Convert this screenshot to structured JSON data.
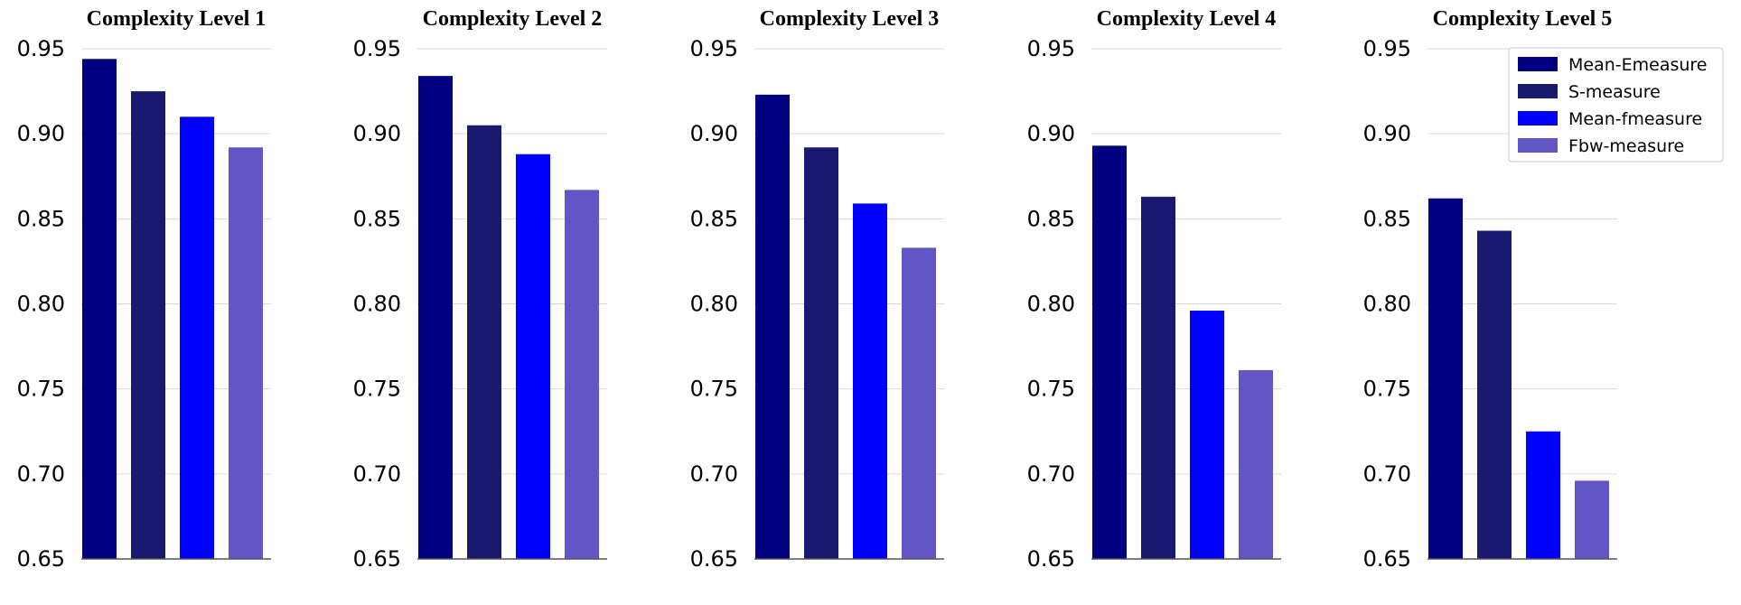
{
  "chart_data": {
    "type": "bar",
    "layout": "five side-by-side panels sharing one legend",
    "series_names": [
      "Mean-Emeasure",
      "S-measure",
      "Mean-fmeasure",
      "Fbw-measure"
    ],
    "colors": [
      "#000080",
      "#191970",
      "#0000FF",
      "#6256C7"
    ],
    "ylim": [
      0.65,
      0.95
    ],
    "yticks": [
      "0.95",
      "0.90",
      "0.85",
      "0.80",
      "0.75",
      "0.70",
      "0.65"
    ],
    "grid": "horizontal",
    "legend_position": "top-right",
    "panels": [
      {
        "title": "Complexity Level 1",
        "values": [
          0.944,
          0.925,
          0.91,
          0.892
        ]
      },
      {
        "title": "Complexity Level 2",
        "values": [
          0.934,
          0.905,
          0.888,
          0.867
        ]
      },
      {
        "title": "Complexity Level 3",
        "values": [
          0.923,
          0.892,
          0.859,
          0.833
        ]
      },
      {
        "title": "Complexity Level 4",
        "values": [
          0.893,
          0.863,
          0.796,
          0.761
        ]
      },
      {
        "title": "Complexity Level 5",
        "values": [
          0.862,
          0.843,
          0.725,
          0.696
        ]
      }
    ]
  }
}
